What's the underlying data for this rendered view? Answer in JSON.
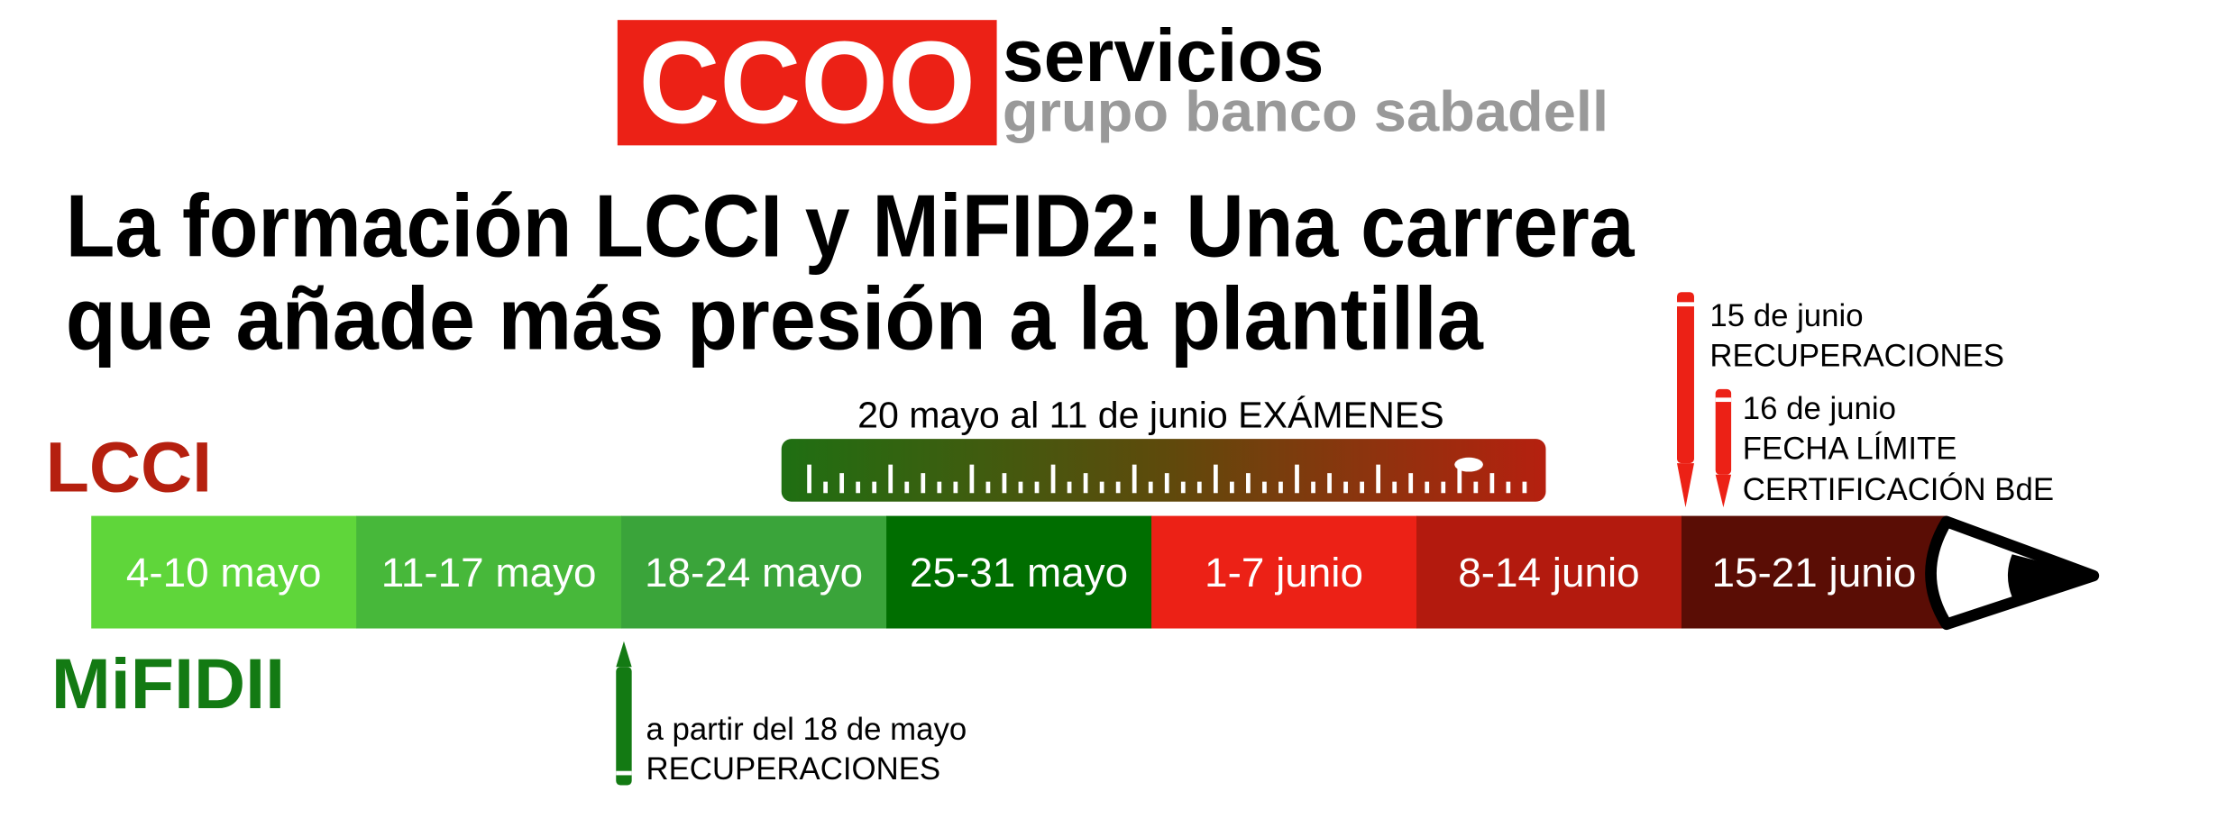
{
  "logo": {
    "mark": "CCOO",
    "name": "servicios",
    "subtitle": "grupo banco sabadell"
  },
  "title": {
    "lines": [
      "La formación LCCI y MiFID2: Una carrera",
      "que añade más presión a la plantilla"
    ]
  },
  "tracks": {
    "top": "LCCI",
    "bottom": "MiFIDII"
  },
  "exams": {
    "label": "20 mayo al 11 de junio EXÁMENES"
  },
  "timeline": {
    "weeks": [
      {
        "label": "4-10 mayo",
        "color": "#5fd63a"
      },
      {
        "label": "11-17 mayo",
        "color": "#47b83a"
      },
      {
        "label": "18-24 mayo",
        "color": "#3aa43a"
      },
      {
        "label": "25-31 mayo",
        "color": "#006e00"
      },
      {
        "label": "1-7 junio",
        "color": "#ec2116"
      },
      {
        "label": "8-14 junio",
        "color": "#b31a0e"
      },
      {
        "label": "15-21 junio",
        "color": "#5a0d05"
      }
    ]
  },
  "notes": [
    {
      "lines": [
        "15 de junio",
        "RECUPERACIONES"
      ]
    },
    {
      "lines": [
        "16 de junio",
        "FECHA LÍMITE",
        "CERTIFICACIÓN BdE"
      ]
    },
    {
      "lines": [
        "a partir del 18 de mayo",
        "RECUPERACIONES"
      ]
    }
  ]
}
